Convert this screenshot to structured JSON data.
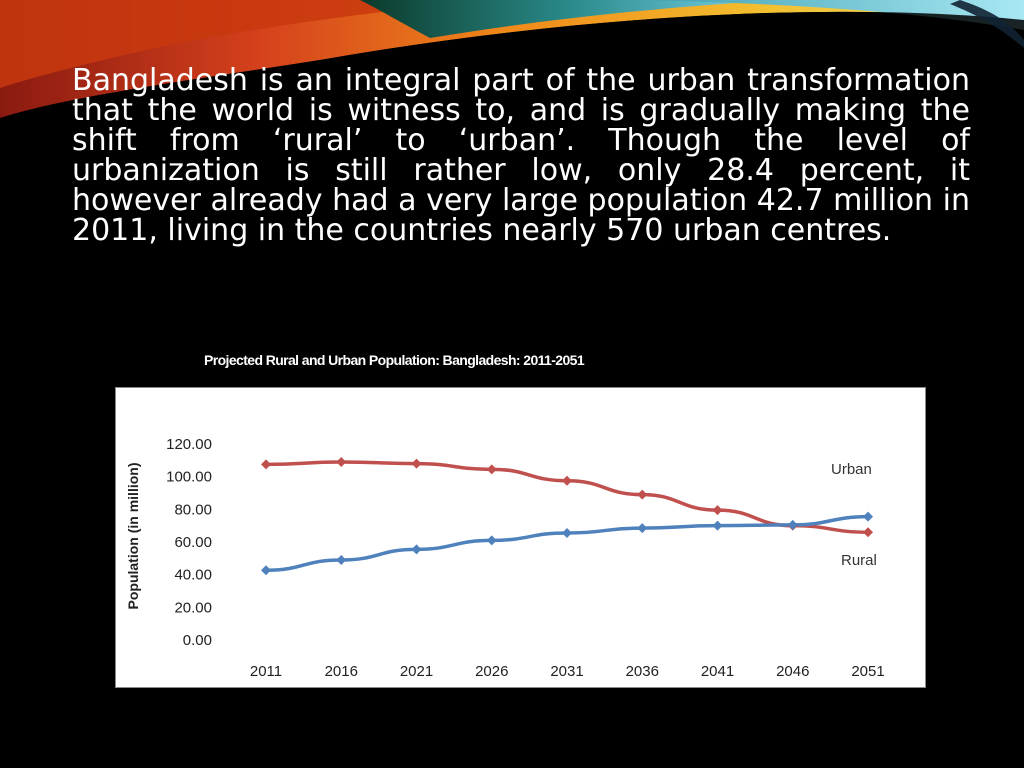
{
  "slide": {
    "paragraph": "Bangladesh is an integral part of the urban transformation that the world is witness to, and is gradually making the shift from ‘rural’ to ‘urban’. Though the level of urbanization is still rather low, only 28.4 percent, it however already had a very large population 42.7 million in 2011, living in the countries nearly 570 urban centres."
  },
  "chart_data": {
    "type": "line",
    "title": "Projected Rural and Urban Population: Bangladesh: 2011-2051",
    "xlabel": "",
    "ylabel": "Population (in million)",
    "categories": [
      "2011",
      "2016",
      "2021",
      "2026",
      "2031",
      "2036",
      "2041",
      "2046",
      "2051"
    ],
    "ylim": [
      0,
      120
    ],
    "yticks": [
      "0.00",
      "20.00",
      "40.00",
      "60.00",
      "80.00",
      "100.00",
      "120.00"
    ],
    "legend_labels": {
      "urban": "Urban",
      "rural": "Rural"
    },
    "series": [
      {
        "name": "Rural",
        "color": "#c0504d",
        "values": [
          107.5,
          109.0,
          108.0,
          104.5,
          97.5,
          89.0,
          79.5,
          70.0,
          66.0
        ]
      },
      {
        "name": "Urban",
        "color": "#4f81bd",
        "values": [
          42.7,
          49.0,
          55.5,
          61.0,
          65.5,
          68.5,
          70.0,
          70.5,
          75.5
        ]
      }
    ],
    "grid": false
  }
}
